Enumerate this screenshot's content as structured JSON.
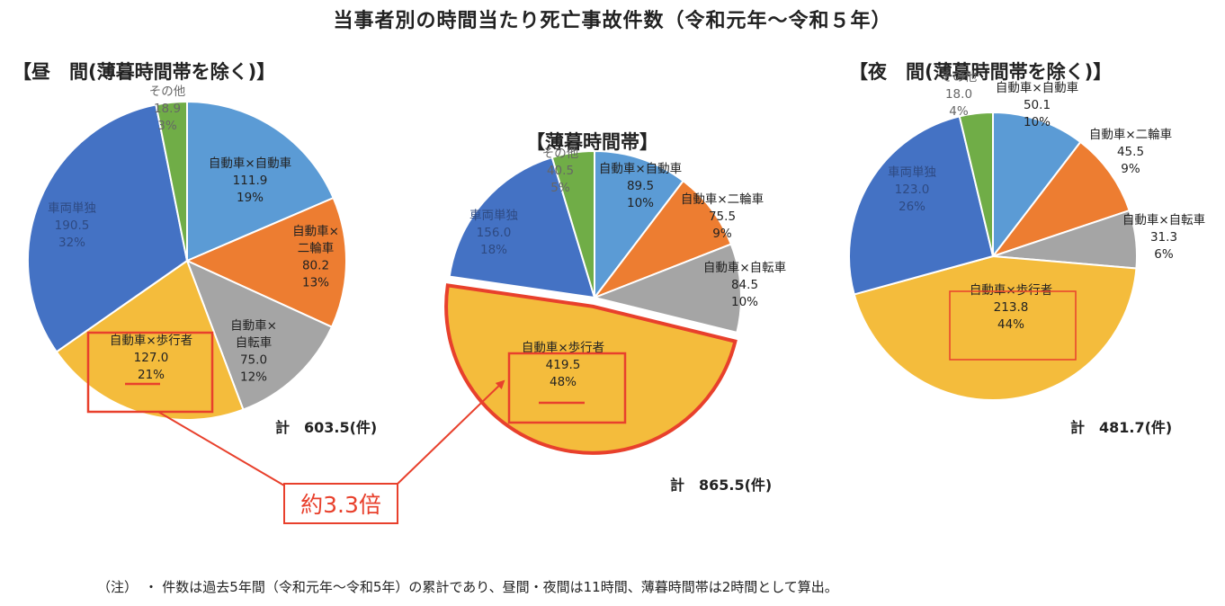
{
  "title": "当事者別の時間当たり死亡事故件数（令和元年～令和５年）",
  "chart_data": [
    {
      "type": "pie",
      "title": "【昼　間(薄暮時間帯を除く)】",
      "total_label": "計　603.5(件)",
      "highlight": "自動車×歩行者",
      "slices": [
        {
          "name": "自動車×自動車",
          "value": 111.9,
          "value_label": "111.9",
          "pct": "19%",
          "color": "#5b9bd5"
        },
        {
          "name": "自動車×二輪車",
          "value": 80.2,
          "value_label": "80.2",
          "pct": "13%",
          "color": "#ed7d31"
        },
        {
          "name": "自動車×自転車",
          "value": 75.0,
          "value_label": "75.0",
          "pct": "12%",
          "color": "#a5a5a5"
        },
        {
          "name": "自動車×歩行者",
          "value": 127.0,
          "value_label": "127.0",
          "pct": "21%",
          "color": "#f4bc3c"
        },
        {
          "name": "車両単独",
          "value": 190.5,
          "value_label": "190.5",
          "pct": "32%",
          "color": "#4472c4"
        },
        {
          "name": "その他",
          "value": 18.9,
          "value_label": "18.9",
          "pct": "3%",
          "color": "#70ad47"
        }
      ]
    },
    {
      "type": "pie",
      "title": "【薄暮時間帯】",
      "total_label": "計　865.5(件)",
      "highlight": "自動車×歩行者",
      "slices": [
        {
          "name": "自動車×自動車",
          "value": 89.5,
          "value_label": "89.5",
          "pct": "10%",
          "color": "#5b9bd5"
        },
        {
          "name": "自動車×二輪車",
          "value": 75.5,
          "value_label": "75.5",
          "pct": "9%",
          "color": "#ed7d31"
        },
        {
          "name": "自動車×自転車",
          "value": 84.5,
          "value_label": "84.5",
          "pct": "10%",
          "color": "#a5a5a5"
        },
        {
          "name": "自動車×歩行者",
          "value": 419.5,
          "value_label": "419.5",
          "pct": "48%",
          "color": "#f4bc3c"
        },
        {
          "name": "車両単独",
          "value": 156.0,
          "value_label": "156.0",
          "pct": "18%",
          "color": "#4472c4"
        },
        {
          "name": "その他",
          "value": 40.5,
          "value_label": "40.5",
          "pct": "5%",
          "color": "#70ad47"
        }
      ]
    },
    {
      "type": "pie",
      "title": "【夜　間(薄暮時間帯を除く)】",
      "total_label": "計　481.7(件)",
      "highlight": "自動車×歩行者",
      "slices": [
        {
          "name": "自動車×自動車",
          "value": 50.1,
          "value_label": "50.1",
          "pct": "10%",
          "color": "#5b9bd5"
        },
        {
          "name": "自動車×二輪車",
          "value": 45.5,
          "value_label": "45.5",
          "pct": "9%",
          "color": "#ed7d31"
        },
        {
          "name": "自動車×自転車",
          "value": 31.3,
          "value_label": "31.3",
          "pct": "6%",
          "color": "#a5a5a5"
        },
        {
          "name": "自動車×歩行者",
          "value": 213.8,
          "value_label": "213.8",
          "pct": "44%",
          "color": "#f4bc3c"
        },
        {
          "name": "車両単独",
          "value": 123.0,
          "value_label": "123.0",
          "pct": "26%",
          "color": "#4472c4"
        },
        {
          "name": "その他",
          "value": 18.0,
          "value_label": "18.0",
          "pct": "4%",
          "color": "#70ad47"
        }
      ]
    }
  ],
  "annotation": {
    "ratio_label": "約3.3倍",
    "color": "#e8402c"
  },
  "footnote": "（注）　・ 件数は過去5年間（令和元年～令和5年）の累計であり、昼間・夜間は11時間、薄暮時間帯は2時間として算出。"
}
